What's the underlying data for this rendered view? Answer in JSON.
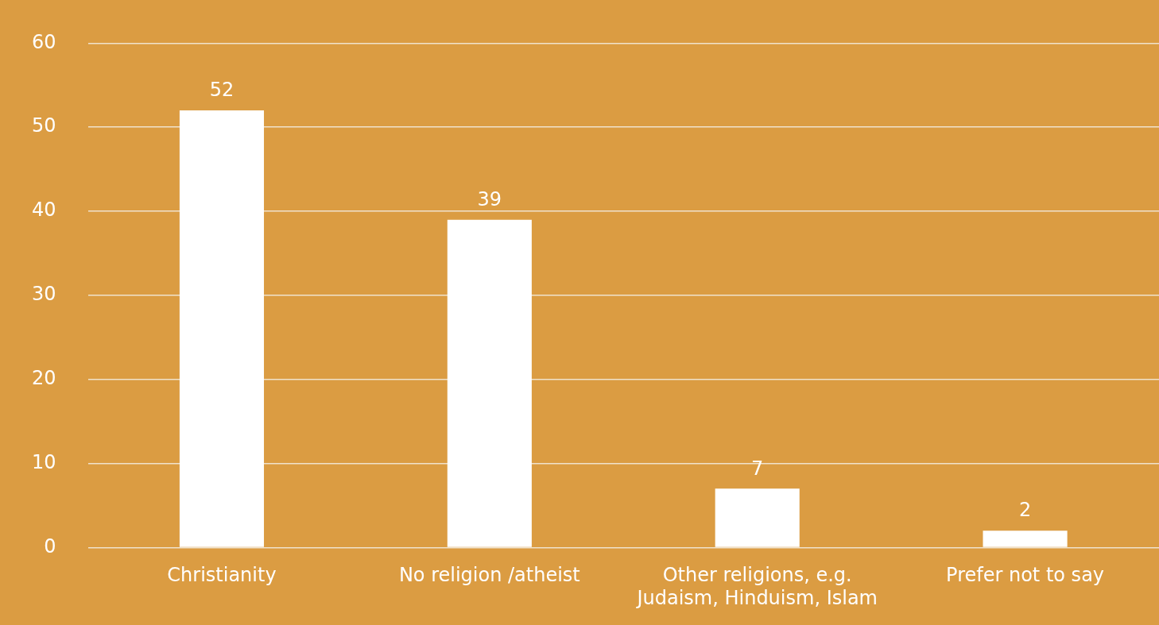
{
  "chart_data": {
    "type": "bar",
    "categories": [
      "Christianity",
      "No religion /atheist",
      "Other religions, e.g. Judaism, Hinduism, Islam",
      "Prefer not to say"
    ],
    "values": [
      52,
      39,
      7,
      2
    ],
    "color": "#ffffff",
    "ylim": [
      0,
      60
    ],
    "yticks": [
      0,
      10,
      20,
      30,
      40,
      50,
      60
    ],
    "grid": "y",
    "data_labels": true,
    "legend": false
  }
}
